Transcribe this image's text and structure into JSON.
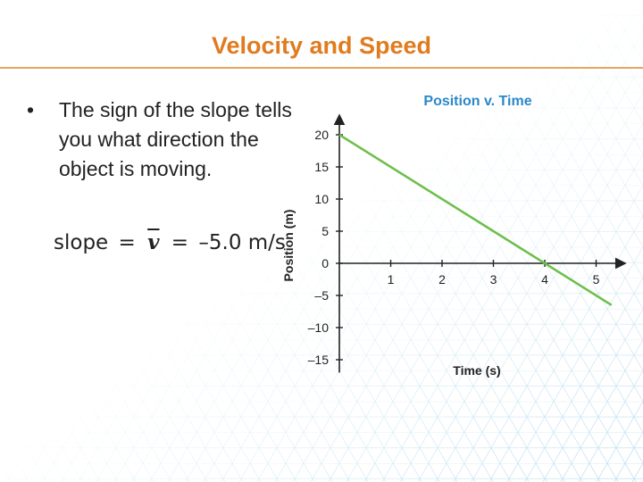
{
  "slide": {
    "title": "Velocity and Speed",
    "bullet_symbol": "•",
    "bullet_text": "The sign of the slope tells you what direction the object is moving.",
    "equation": {
      "lhs": "slope",
      "eq1": "=",
      "var": "v",
      "eq2": "=",
      "value": "–5.0 m/s"
    }
  },
  "chart_data": {
    "type": "line",
    "title": "Position v. Time",
    "xlabel": "Time (s)",
    "ylabel": "Position (m)",
    "xlim": [
      0,
      5.4
    ],
    "ylim": [
      -17,
      22
    ],
    "x_ticks": [
      1,
      2,
      3,
      4,
      5
    ],
    "y_ticks": [
      20,
      15,
      10,
      5,
      0,
      -5,
      -10,
      -15
    ],
    "y_tick_labels": [
      "20",
      "15",
      "10",
      "5",
      "0",
      "–5",
      "–10",
      "–15"
    ],
    "grid": false,
    "series": [
      {
        "x": [
          0,
          5.3
        ],
        "y": [
          20,
          -6.5
        ],
        "color": "#6cbf4a"
      }
    ]
  }
}
